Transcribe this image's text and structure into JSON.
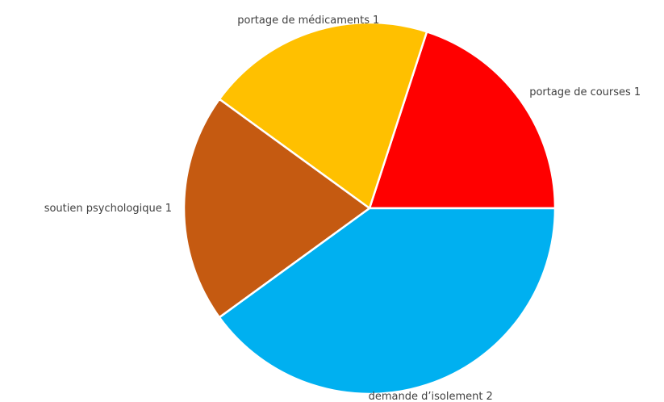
{
  "chart_data": {
    "type": "pie",
    "categories": [
      "portage de courses",
      "portage de médicaments",
      "soutien psychologique",
      "demande d’isolement"
    ],
    "values": [
      1,
      1,
      1,
      2
    ],
    "colors": [
      "#ff0000",
      "#ffc000",
      "#c55a11",
      "#00b0f0"
    ]
  }
}
